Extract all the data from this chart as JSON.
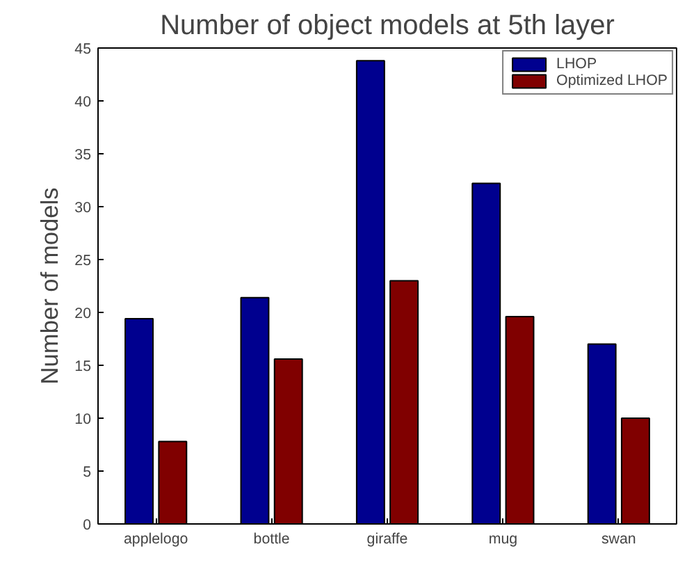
{
  "chart_data": {
    "type": "bar",
    "title": "Number of object models at 5th layer",
    "ylabel": "Number of models",
    "categories": [
      "applelogo",
      "bottle",
      "giraffe",
      "mug",
      "swan"
    ],
    "series": [
      {
        "name": "LHOP",
        "color": "#00008f",
        "values": [
          19.4,
          21.4,
          43.8,
          32.2,
          17.0
        ]
      },
      {
        "name": "Optimized LHOP",
        "color": "#800000",
        "values": [
          7.8,
          15.6,
          23.0,
          19.6,
          10.0
        ]
      }
    ],
    "ylim": [
      0,
      45
    ],
    "yticks": [
      0,
      5,
      10,
      15,
      20,
      25,
      30,
      35,
      40,
      45
    ],
    "grid": false,
    "legend": "top right"
  }
}
